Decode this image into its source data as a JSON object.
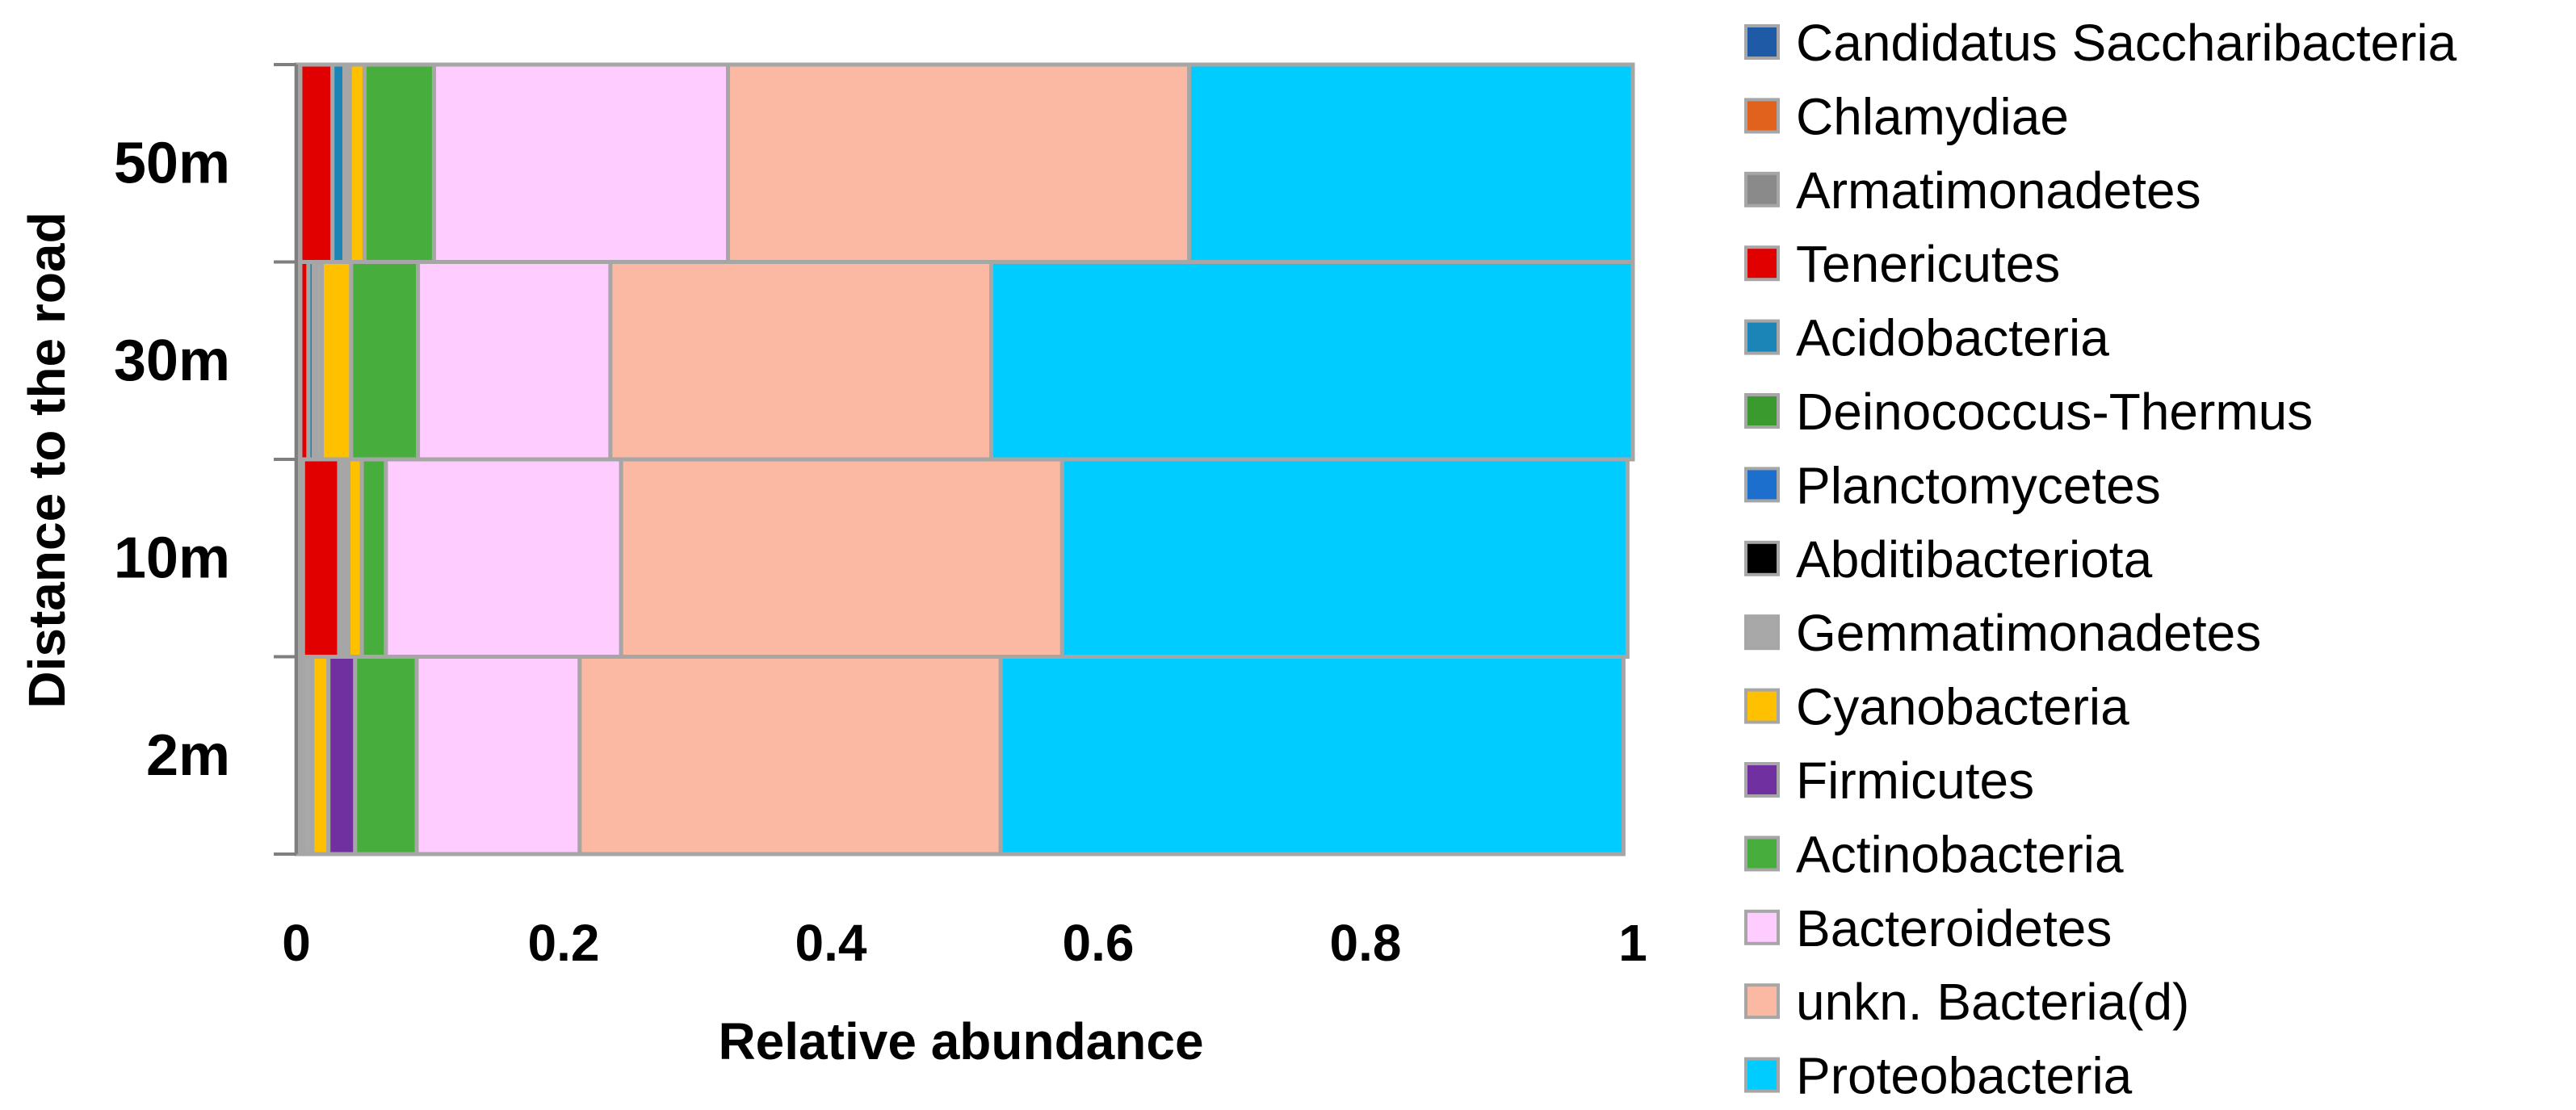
{
  "chart_data": {
    "type": "bar",
    "orientation": "horizontal",
    "stacked": true,
    "title": "",
    "xlabel": "Relative abundance",
    "ylabel": "Distance to the road",
    "xlim": [
      0,
      1
    ],
    "xticks": [
      "0",
      "0.2",
      "0.4",
      "0.6",
      "0.8",
      "1"
    ],
    "categories": [
      "2m",
      "10m",
      "30m",
      "50m"
    ],
    "legend_position": "right",
    "series": [
      {
        "name": "Candidatus Saccharibacteria",
        "color": "#1f5aa6",
        "values": [
          0.0,
          0.003,
          0.0,
          0.0
        ]
      },
      {
        "name": "Chlamydiae",
        "color": "#e0621c",
        "values": [
          0.002,
          0.0,
          0.003,
          0.0
        ]
      },
      {
        "name": "Armatimonadetes",
        "color": "#8a8a8a",
        "values": [
          0.003,
          0.002,
          0.0,
          0.003
        ]
      },
      {
        "name": "Tenericutes",
        "color": "#e00000",
        "values": [
          0.0,
          0.027,
          0.006,
          0.024
        ]
      },
      {
        "name": "Acidobacteria",
        "color": "#1c85b8",
        "values": [
          0.0,
          0.002,
          0.004,
          0.009
        ]
      },
      {
        "name": "Deinococcus-Thermus",
        "color": "#3a9a2e",
        "values": [
          0.0,
          0.0,
          0.0,
          0.0
        ]
      },
      {
        "name": "Planctomycetes",
        "color": "#1d6fce",
        "values": [
          0.0,
          0.003,
          0.001,
          0.001
        ]
      },
      {
        "name": "Abditibacteriota",
        "color": "#000000",
        "values": [
          0.0,
          0.0,
          0.001,
          0.0
        ]
      },
      {
        "name": "Gemmatimonadetes",
        "color": "#a8a8a8",
        "values": [
          0.007,
          0.002,
          0.004,
          0.003
        ]
      },
      {
        "name": "Cyanobacteria",
        "color": "#ffc000",
        "values": [
          0.012,
          0.01,
          0.022,
          0.011
        ]
      },
      {
        "name": "Firmicutes",
        "color": "#7030a0",
        "values": [
          0.02,
          0.0,
          0.0,
          0.0
        ]
      },
      {
        "name": "Actinobacteria",
        "color": "#47ad3c",
        "values": [
          0.046,
          0.018,
          0.05,
          0.052
        ]
      },
      {
        "name": "Bacteroidetes",
        "color": "#ffccff",
        "values": [
          0.122,
          0.176,
          0.144,
          0.22
        ]
      },
      {
        "name": "unkn. Bacteria(d)",
        "color": "#fbb9a3",
        "values": [
          0.315,
          0.33,
          0.285,
          0.345
        ]
      },
      {
        "name": "Proteobacteria",
        "color": "#00ccff",
        "values": [
          0.466,
          0.423,
          0.48,
          0.332
        ]
      }
    ]
  }
}
